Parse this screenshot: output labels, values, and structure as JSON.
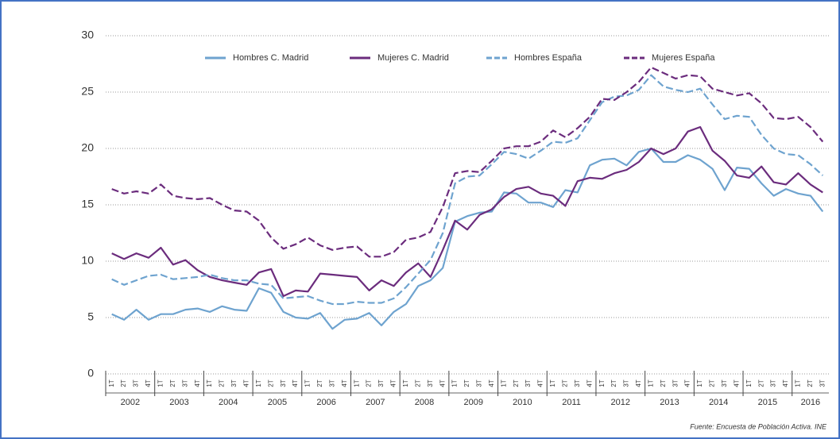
{
  "chart_data": {
    "type": "line",
    "source": "Fuente: Encuesta de Población Activa. INE",
    "categories": [
      "1T",
      "2T",
      "3T",
      "4T",
      "1T",
      "2T",
      "3T",
      "4T",
      "1T",
      "2T",
      "3T",
      "4T",
      "1T",
      "2T",
      "3T",
      "4T",
      "1T",
      "2T",
      "3T",
      "4T",
      "1T",
      "2T",
      "3T",
      "4T",
      "1T",
      "2T",
      "3T",
      "4T",
      "1T",
      "2T",
      "3T",
      "4T",
      "1T",
      "2T",
      "3T",
      "4T",
      "1T",
      "2T",
      "3T",
      "4T",
      "1T",
      "2T",
      "3T",
      "4T",
      "1T",
      "2T",
      "3T",
      "4T",
      "1T",
      "2T",
      "3T",
      "4T",
      "1T",
      "2T",
      "3T",
      "4T",
      "1T",
      "2T",
      "3T"
    ],
    "years": [
      "2002",
      "2003",
      "2004",
      "2005",
      "2006",
      "2007",
      "2008",
      "2009",
      "2010",
      "2011",
      "2012",
      "2013",
      "2014",
      "2015",
      "2016"
    ],
    "ylim": [
      0,
      30
    ],
    "yticks": [
      0,
      5,
      10,
      15,
      20,
      25,
      30
    ],
    "grid": true,
    "series": [
      {
        "name": "Hombres C. Madrid",
        "color": "#6ea3cf",
        "dashed": false,
        "values": [
          5.3,
          4.8,
          5.7,
          4.8,
          5.3,
          5.3,
          5.7,
          5.8,
          5.5,
          6.0,
          5.7,
          5.6,
          7.6,
          7.2,
          5.5,
          5.0,
          4.9,
          5.4,
          4.0,
          4.8,
          4.9,
          5.4,
          4.3,
          5.5,
          6.2,
          7.8,
          8.3,
          9.4,
          13.5,
          14.0,
          14.3,
          14.4,
          16.1,
          16.0,
          15.2,
          15.2,
          14.8,
          16.3,
          16.1,
          18.5,
          19.0,
          19.1,
          18.5,
          19.7,
          20.0,
          18.8,
          18.8,
          19.4,
          19.0,
          18.2,
          16.3,
          18.3,
          18.2,
          16.9,
          15.8,
          16.4,
          16.0,
          15.8,
          14.4
        ]
      },
      {
        "name": "Mujeres C. Madrid",
        "color": "#6b2c7d",
        "dashed": false,
        "values": [
          10.7,
          10.2,
          10.7,
          10.3,
          11.2,
          9.7,
          10.1,
          9.2,
          8.6,
          8.3,
          8.1,
          7.9,
          9.0,
          9.3,
          6.9,
          7.4,
          7.3,
          8.9,
          8.8,
          8.7,
          8.6,
          7.4,
          8.3,
          7.8,
          9.0,
          9.8,
          8.6,
          11.0,
          13.6,
          12.8,
          14.1,
          14.6,
          15.7,
          16.4,
          16.6,
          16.0,
          15.8,
          14.9,
          17.1,
          17.4,
          17.3,
          17.8,
          18.1,
          18.8,
          20.0,
          19.5,
          20.0,
          21.5,
          21.9,
          19.8,
          18.9,
          17.6,
          17.4,
          18.4,
          17.0,
          16.8,
          17.8,
          16.8,
          16.1
        ]
      },
      {
        "name": "Hombres España",
        "color": "#6ea3cf",
        "dashed": true,
        "values": [
          8.4,
          7.9,
          8.3,
          8.7,
          8.8,
          8.4,
          8.5,
          8.6,
          8.8,
          8.5,
          8.3,
          8.3,
          8.0,
          7.9,
          6.7,
          6.8,
          6.9,
          6.5,
          6.2,
          6.2,
          6.4,
          6.3,
          6.3,
          6.7,
          7.7,
          8.9,
          10.1,
          12.5,
          16.9,
          17.5,
          17.6,
          18.6,
          19.7,
          19.5,
          19.1,
          19.8,
          20.6,
          20.5,
          20.9,
          22.5,
          24.1,
          24.6,
          24.7,
          25.2,
          26.5,
          25.5,
          25.2,
          25.0,
          25.3,
          23.9,
          22.6,
          22.9,
          22.8,
          21.2,
          20.0,
          19.5,
          19.4,
          18.6,
          17.6
        ]
      },
      {
        "name": "Mujeres España",
        "color": "#6b2c7d",
        "dashed": true,
        "values": [
          16.4,
          16.0,
          16.2,
          16.0,
          16.8,
          15.8,
          15.6,
          15.5,
          15.6,
          15.0,
          14.5,
          14.4,
          13.6,
          12.1,
          11.1,
          11.5,
          12.1,
          11.4,
          11.0,
          11.2,
          11.3,
          10.4,
          10.4,
          10.8,
          11.9,
          12.1,
          12.6,
          14.8,
          17.8,
          18.0,
          17.9,
          18.9,
          20.0,
          20.2,
          20.2,
          20.6,
          21.6,
          21.0,
          21.8,
          22.8,
          24.4,
          24.3,
          25.0,
          25.9,
          27.2,
          26.7,
          26.2,
          26.5,
          26.4,
          25.3,
          25.0,
          24.7,
          24.9,
          24.0,
          22.7,
          22.6,
          22.8,
          21.9,
          20.6
        ]
      }
    ]
  }
}
